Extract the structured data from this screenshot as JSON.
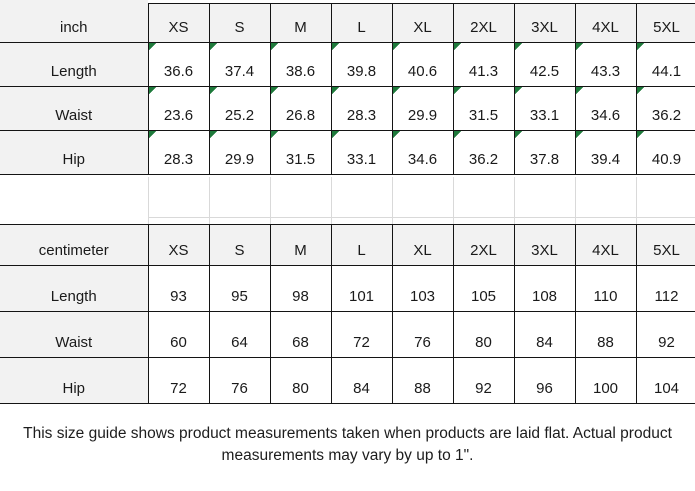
{
  "tables": [
    {
      "unit": "inch",
      "sizes": [
        "XS",
        "S",
        "M",
        "L",
        "XL",
        "2XL",
        "3XL",
        "4XL",
        "5XL"
      ],
      "rows": [
        {
          "label": "Length",
          "values": [
            "36.6",
            "37.4",
            "38.6",
            "39.8",
            "40.6",
            "41.3",
            "42.5",
            "43.3",
            "44.1"
          ]
        },
        {
          "label": "Waist",
          "values": [
            "23.6",
            "25.2",
            "26.8",
            "28.3",
            "29.9",
            "31.5",
            "33.1",
            "34.6",
            "36.2"
          ]
        },
        {
          "label": "Hip",
          "values": [
            "28.3",
            "29.9",
            "31.5",
            "33.1",
            "34.6",
            "36.2",
            "37.8",
            "39.4",
            "40.9"
          ]
        }
      ],
      "value_flags": true
    },
    {
      "unit": "centimeter",
      "sizes": [
        "XS",
        "S",
        "M",
        "L",
        "XL",
        "2XL",
        "3XL",
        "4XL",
        "5XL"
      ],
      "rows": [
        {
          "label": "Length",
          "values": [
            "93",
            "95",
            "98",
            "101",
            "103",
            "105",
            "108",
            "110",
            "112"
          ]
        },
        {
          "label": "Waist",
          "values": [
            "60",
            "64",
            "68",
            "72",
            "76",
            "80",
            "84",
            "88",
            "92"
          ]
        },
        {
          "label": "Hip",
          "values": [
            "72",
            "76",
            "80",
            "84",
            "88",
            "92",
            "96",
            "100",
            "104"
          ]
        }
      ],
      "value_flags": false
    }
  ],
  "note": {
    "lines": [
      "This size guide shows product measurements taken when products are laid flat. Actual product",
      "measurements may vary by up to 1\"."
    ]
  },
  "colors": {
    "flag_green": "#1e7a3b",
    "header_fill": "#f2f2f2",
    "table_border": "#141414",
    "ghost_gridline": "#d9d9d9"
  }
}
